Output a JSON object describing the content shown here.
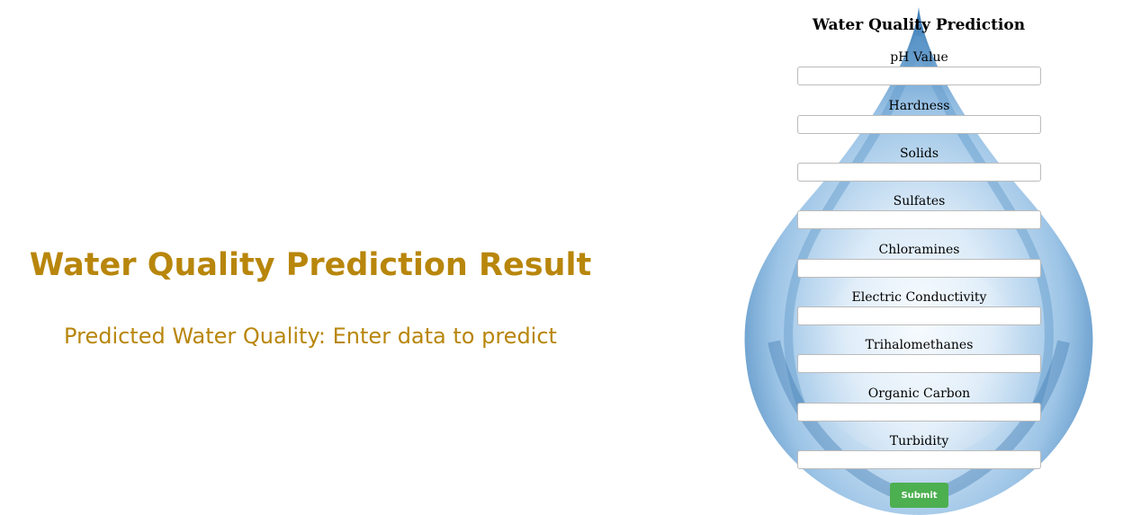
{
  "result": {
    "title": "Water Quality Prediction Result",
    "prediction_text": "Predicted Water Quality: Enter data to predict"
  },
  "form": {
    "title": "Water Quality Prediction",
    "fields": [
      {
        "label": "pH Value",
        "value": ""
      },
      {
        "label": "Hardness",
        "value": ""
      },
      {
        "label": "Solids",
        "value": ""
      },
      {
        "label": "Sulfates",
        "value": ""
      },
      {
        "label": "Chloramines",
        "value": ""
      },
      {
        "label": "Electric Conductivity",
        "value": ""
      },
      {
        "label": "Trihalomethanes",
        "value": ""
      },
      {
        "label": "Organic Carbon",
        "value": ""
      },
      {
        "label": "Turbidity",
        "value": ""
      }
    ],
    "submit_label": "Submit"
  },
  "colors": {
    "accent_text": "#b8860b",
    "submit_bg": "#4caf50",
    "drop_light": "#e6f2fb",
    "drop_mid": "#9cc4e6",
    "drop_dark": "#3f7fb8"
  },
  "icons": {
    "background": "water-drop-icon"
  }
}
